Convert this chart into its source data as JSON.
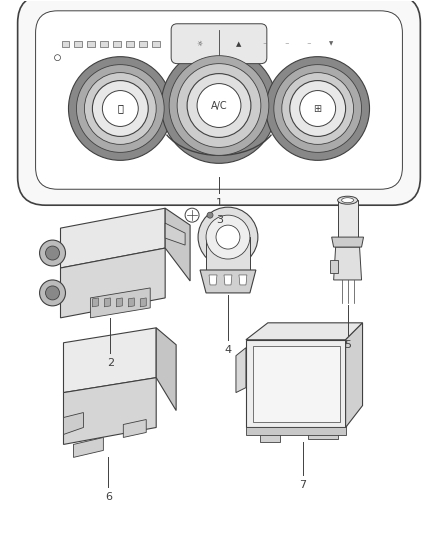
{
  "background_color": "#ffffff",
  "line_color": "#404040",
  "figsize": [
    4.38,
    5.33
  ],
  "dpi": 100,
  "label_fontsize": 8
}
